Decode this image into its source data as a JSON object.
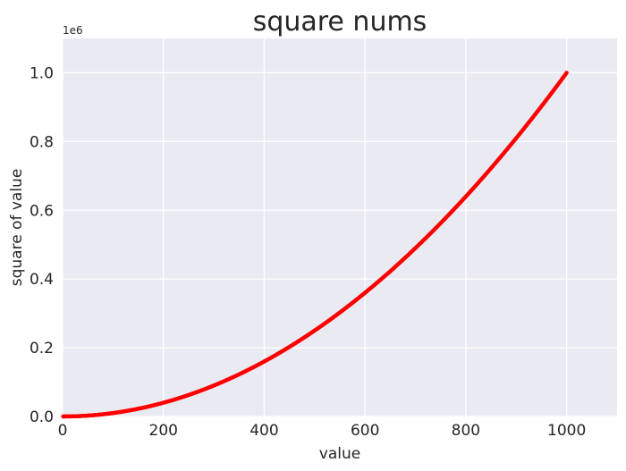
{
  "chart_data": {
    "type": "scatter",
    "title": "square nums",
    "xlabel": "value",
    "ylabel": "square of value",
    "y_offset_label": "1e6",
    "x": {
      "start": 1,
      "end": 1000,
      "step": 1
    },
    "y_rule": "x squared",
    "xlim": [
      0,
      1100
    ],
    "ylim": [
      0,
      1100000
    ],
    "x_ticks": [
      0,
      200,
      400,
      600,
      800,
      1000
    ],
    "x_tick_labels": [
      "0",
      "200",
      "400",
      "600",
      "800",
      "1000"
    ],
    "y_ticks": [
      0,
      200000,
      400000,
      600000,
      800000,
      1000000
    ],
    "y_tick_labels": [
      "0.0",
      "0.2",
      "0.4",
      "0.6",
      "0.8",
      "1.0"
    ],
    "grid": true,
    "legend": "none",
    "colors": {
      "series": "#ff0000",
      "plot_background": "#eaeaf2",
      "grid": "#ffffff"
    }
  }
}
